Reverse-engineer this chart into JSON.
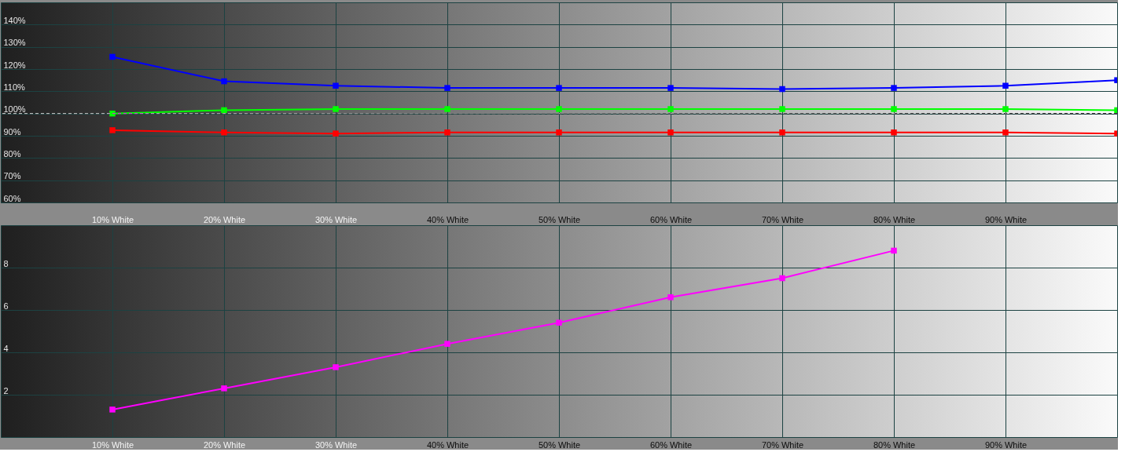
{
  "chart_data": [
    {
      "type": "line",
      "x": [
        10,
        20,
        30,
        40,
        50,
        60,
        70,
        80,
        90,
        100
      ],
      "xlim": [
        0,
        100
      ],
      "xticks": [
        {
          "value": 10,
          "label": "10% White"
        },
        {
          "value": 20,
          "label": "20% White"
        },
        {
          "value": 30,
          "label": "30% White"
        },
        {
          "value": 40,
          "label": "40% White"
        },
        {
          "value": 50,
          "label": "50% White"
        },
        {
          "value": 60,
          "label": "60% White"
        },
        {
          "value": 70,
          "label": "70% White"
        },
        {
          "value": 80,
          "label": "80% White"
        },
        {
          "value": 90,
          "label": "90% White"
        }
      ],
      "ylim": [
        60,
        150
      ],
      "yticks": [
        {
          "value": 60,
          "label": "60%"
        },
        {
          "value": 70,
          "label": "70%"
        },
        {
          "value": 80,
          "label": "80%"
        },
        {
          "value": 90,
          "label": "90%"
        },
        {
          "value": 100,
          "label": "100%"
        },
        {
          "value": 110,
          "label": "110%"
        },
        {
          "value": 120,
          "label": "120%"
        },
        {
          "value": 130,
          "label": "130%"
        },
        {
          "value": 140,
          "label": "140%"
        }
      ],
      "series": [
        {
          "color": "#0000ff",
          "values": [
            125.5,
            114.5,
            112.5,
            111.5,
            111.5,
            111.5,
            111,
            111.5,
            112.5,
            115
          ]
        },
        {
          "color": "#00ff00",
          "values": [
            100,
            101.5,
            102,
            102,
            102,
            102,
            102,
            102,
            102,
            101.5
          ]
        },
        {
          "color": "#ff0000",
          "values": [
            92.5,
            91.5,
            91,
            91.5,
            91.5,
            91.5,
            91.5,
            91.5,
            91.5,
            91
          ]
        }
      ],
      "ref_lines": [
        {
          "axis": "y",
          "value": 100,
          "color": "#ffffff",
          "line_style": "dashed"
        }
      ],
      "grid": true,
      "marker": "square",
      "line_style": "solid"
    },
    {
      "type": "line",
      "x": [
        10,
        20,
        30,
        40,
        50,
        60,
        70,
        80
      ],
      "xlim": [
        0,
        100
      ],
      "xticks": [
        {
          "value": 10,
          "label": "10% White"
        },
        {
          "value": 20,
          "label": "20% White"
        },
        {
          "value": 30,
          "label": "30% White"
        },
        {
          "value": 40,
          "label": "40% White"
        },
        {
          "value": 50,
          "label": "50% White"
        },
        {
          "value": 60,
          "label": "60% White"
        },
        {
          "value": 70,
          "label": "70% White"
        },
        {
          "value": 80,
          "label": "80% White"
        },
        {
          "value": 90,
          "label": "90% White"
        }
      ],
      "ylim": [
        0,
        10
      ],
      "yticks": [
        2,
        4,
        6,
        8
      ],
      "series": [
        {
          "color": "#ff00ff",
          "values": [
            1.3,
            2.3,
            3.3,
            4.4,
            5.4,
            6.6,
            7.5,
            8.8
          ]
        }
      ],
      "grid": true,
      "marker": "square",
      "line_style": "solid"
    }
  ]
}
